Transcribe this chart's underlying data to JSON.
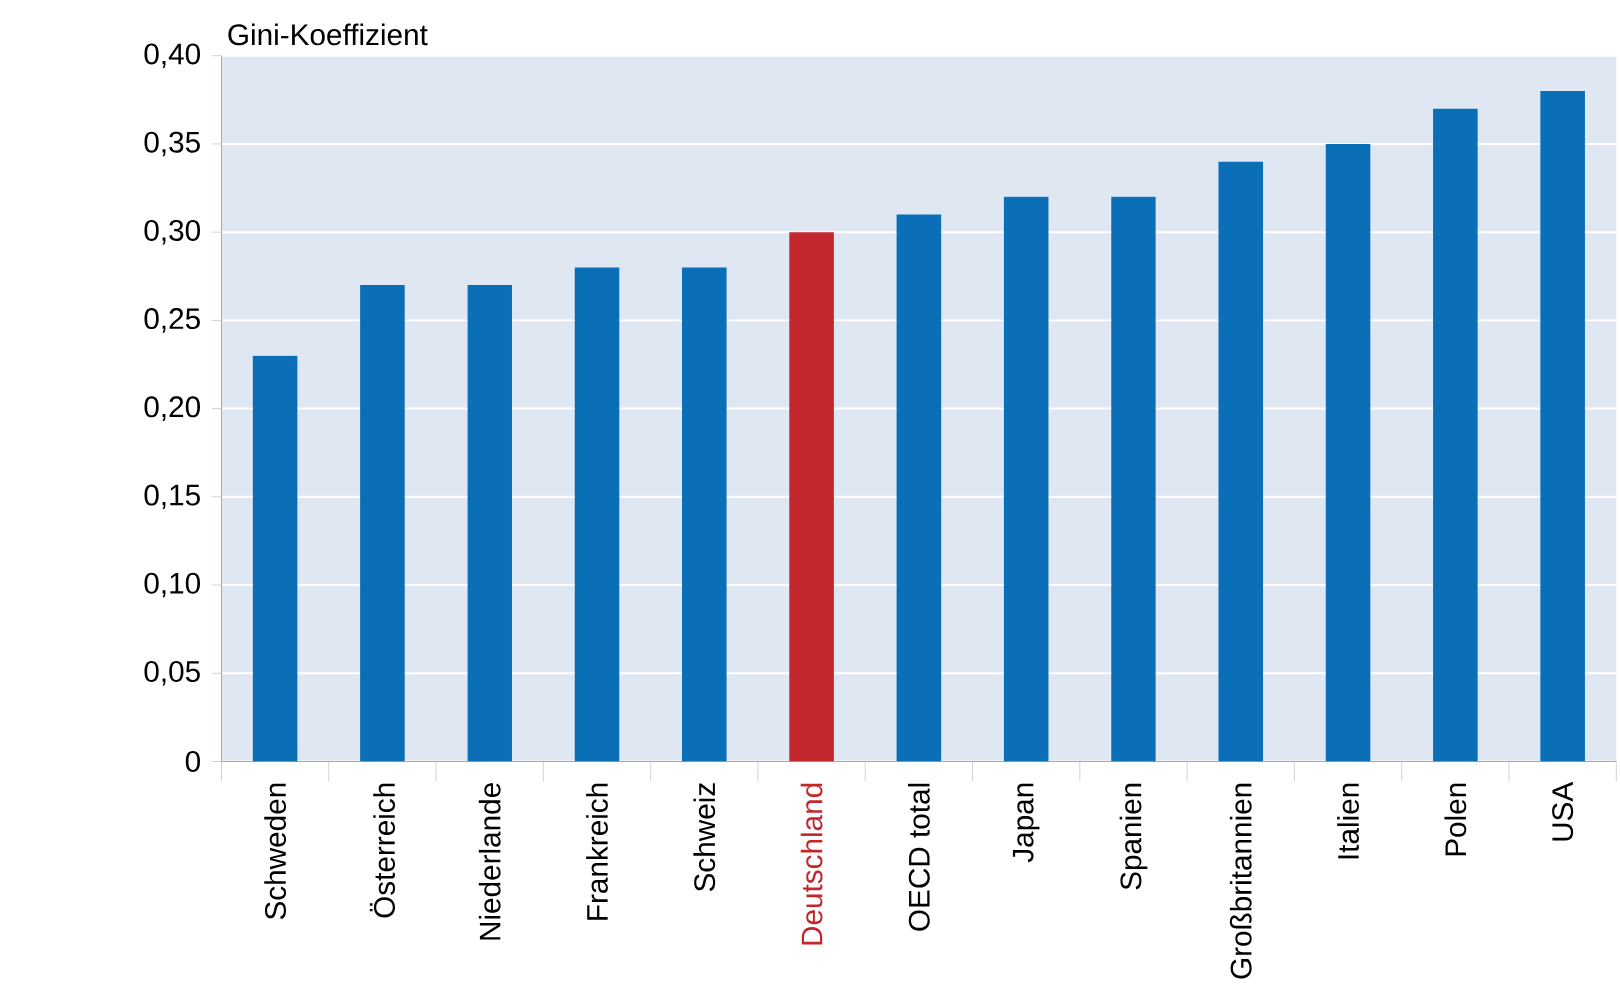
{
  "chart_data": {
    "type": "bar",
    "ylabel": "Gini-Koeffizient",
    "categories": [
      "Schweden",
      "Österreich",
      "Niederlande",
      "Frankreich",
      "Schweiz",
      "Deutschland",
      "OECD total",
      "Japan",
      "Spanien",
      "Großbritannien",
      "Italien",
      "Polen",
      "USA"
    ],
    "values": [
      0.23,
      0.27,
      0.27,
      0.28,
      0.28,
      0.3,
      0.31,
      0.32,
      0.32,
      0.34,
      0.35,
      0.37,
      0.38
    ],
    "colors": [
      "#0a6fb7",
      "#0a6fb7",
      "#0a6fb7",
      "#0a6fb7",
      "#0a6fb7",
      "#c1272d",
      "#0a6fb7",
      "#0a6fb7",
      "#0a6fb7",
      "#0a6fb7",
      "#0a6fb7",
      "#0a6fb7",
      "#0a6fb7"
    ],
    "ylim": [
      0,
      0.4
    ],
    "yticks": [
      {
        "value": 0,
        "label": "0"
      },
      {
        "value": 0.05,
        "label": "0,05"
      },
      {
        "value": 0.1,
        "label": "0,10"
      },
      {
        "value": 0.15,
        "label": "0,15"
      },
      {
        "value": 0.2,
        "label": "0,20"
      },
      {
        "value": 0.25,
        "label": "0,25"
      },
      {
        "value": 0.3,
        "label": "0,30"
      },
      {
        "value": 0.35,
        "label": "0,35"
      },
      {
        "value": 0.4,
        "label": "0,40"
      }
    ],
    "grid": "y"
  }
}
